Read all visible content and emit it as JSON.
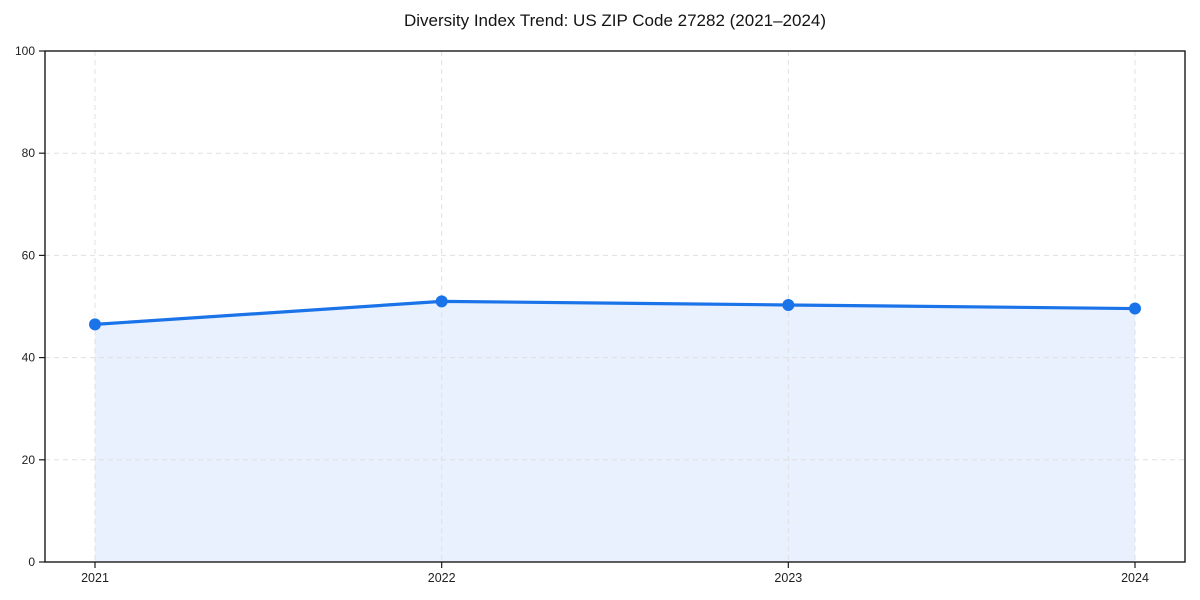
{
  "chart_data": {
    "type": "area",
    "title": "Diversity Index Trend: US ZIP Code 27282 (2021–2024)",
    "x": [
      2021,
      2022,
      2023,
      2024
    ],
    "xticks": [
      "2021",
      "2022",
      "2023",
      "2024"
    ],
    "series": [
      {
        "name": "Diversity Index",
        "values": [
          46.5,
          51.0,
          50.3,
          49.6
        ]
      }
    ],
    "xlabel": "",
    "ylabel": "",
    "ylim": [
      0,
      100
    ],
    "yticks": [
      0,
      20,
      40,
      60,
      80,
      100
    ],
    "grid": "dashed, horizontal and vertical",
    "legend_position": "none",
    "colors": {
      "line": "#1a73e8",
      "marker": "#1a73e8",
      "area_fill": "rgba(26,115,232,0.10)",
      "gridline": "#e0e0e0",
      "spine": "#1a1a1a",
      "tick_label": "#1f1f1f",
      "background": "#ffffff"
    }
  }
}
